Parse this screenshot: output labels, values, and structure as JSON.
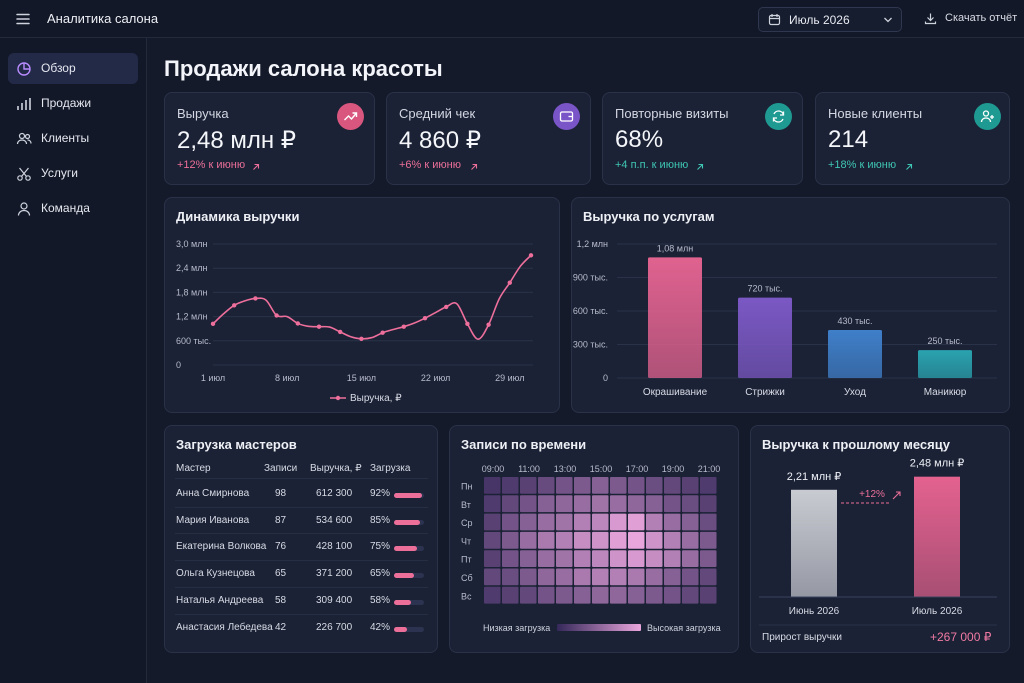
{
  "app": {
    "title": "Аналитика салона"
  },
  "header": {
    "period": "Июль 2026",
    "download_label": "Скачать отчёт"
  },
  "sidebar": {
    "items": [
      {
        "label": "Обзор",
        "icon": "pie-chart-icon",
        "active": true
      },
      {
        "label": "Продажи",
        "icon": "bar-chart-icon"
      },
      {
        "label": "Клиенты",
        "icon": "users-icon"
      },
      {
        "label": "Услуги",
        "icon": "scissors-icon"
      },
      {
        "label": "Команда",
        "icon": "user-icon"
      }
    ]
  },
  "page": {
    "title": "Продажи салона красоты"
  },
  "kpis": [
    {
      "label": "Выручка",
      "value": "2,48 млн ₽",
      "delta": "+12% к июню",
      "delta_color": "#ec6f99",
      "icon": "trend-up-icon",
      "icon_bg": "#d9577f"
    },
    {
      "label": "Средний чек",
      "value": "4 860 ₽",
      "delta": "+6% к июню",
      "delta_color": "#ec6f99",
      "icon": "wallet-icon",
      "icon_bg": "#7a55c8"
    },
    {
      "label": "Повторные визиты",
      "value": "68%",
      "delta": "+4 п.п. к июню",
      "delta_color": "#3fc6b4",
      "icon": "refresh-icon",
      "icon_bg": "#1f9a92"
    },
    {
      "label": "Новые клиенты",
      "value": "214",
      "delta": "+18% к июню",
      "delta_color": "#3fc6b4",
      "icon": "user-plus-icon",
      "icon_bg": "#1f9a92"
    }
  ],
  "revenue_chart": {
    "title": "Динамика выручки",
    "chart_data": {
      "type": "line",
      "y_ticks": [
        "3,0 млн",
        "2,4 млн",
        "1,8 млн",
        "1,2 млн",
        "600 тыс.",
        "0"
      ],
      "x_ticks": [
        "1 июл",
        "8 июл",
        "15 июл",
        "22 июл",
        "29 июл"
      ],
      "ylim": [
        0,
        3000000
      ],
      "x": [
        1,
        2,
        3,
        4,
        5,
        6,
        7,
        8,
        9,
        10,
        11,
        12,
        13,
        14,
        15,
        16,
        17,
        18,
        19,
        20,
        21,
        22,
        23,
        24,
        25,
        26,
        27,
        28,
        29,
        30,
        31
      ],
      "series": [
        {
          "name": "Выручка, ₽",
          "color": "#ee6f9c",
          "values": [
            1020000,
            1270000,
            1480000,
            1590000,
            1650000,
            1610000,
            1230000,
            1200000,
            1030000,
            960000,
            950000,
            940000,
            820000,
            700000,
            650000,
            680000,
            800000,
            880000,
            950000,
            1040000,
            1160000,
            1300000,
            1440000,
            1520000,
            1020000,
            640000,
            1000000,
            1640000,
            2040000,
            2450000,
            2720000
          ]
        }
      ]
    }
  },
  "services_chart": {
    "title": "Выручка по услугам",
    "chart_data": {
      "type": "bar",
      "categories": [
        "Окрашивание",
        "Стрижки",
        "Уход",
        "Маникюр"
      ],
      "values": [
        1080000,
        720000,
        430000,
        250000
      ],
      "value_labels": [
        "1,08 млн",
        "720 тыс.",
        "430 тыс.",
        "250 тыс."
      ],
      "y_ticks": [
        "1,2 млн",
        "900 тыс.",
        "600 тыс.",
        "300 тыс.",
        "0"
      ],
      "ylim": [
        0,
        1200000
      ],
      "colors": [
        "#e0628f",
        "#7b58c4",
        "#3f7fc9",
        "#2aa3b0"
      ]
    }
  },
  "staff": {
    "title": "Загрузка мастеров",
    "headers": [
      "Мастер",
      "Записи",
      "Выручка, ₽",
      "Загрузка"
    ],
    "rows": [
      {
        "name": "Анна Смирнова",
        "bookings": "98",
        "revenue": "612 300",
        "load": "92%",
        "load_value": 92
      },
      {
        "name": "Мария Иванова",
        "bookings": "87",
        "revenue": "534 600",
        "load": "85%",
        "load_value": 85
      },
      {
        "name": "Екатерина Волкова",
        "bookings": "76",
        "revenue": "428 100",
        "load": "75%",
        "load_value": 75
      },
      {
        "name": "Ольга Кузнецова",
        "bookings": "65",
        "revenue": "371 200",
        "load": "65%",
        "load_value": 65
      },
      {
        "name": "Наталья Андреева",
        "bookings": "58",
        "revenue": "309 400",
        "load": "58%",
        "load_value": 58
      },
      {
        "name": "Анастасия Лебедева",
        "bookings": "42",
        "revenue": "226 700",
        "load": "42%",
        "load_value": 42
      }
    ]
  },
  "heatmap": {
    "title": "Записи по времени",
    "chart_data": {
      "type": "heatmap",
      "x_ticks": [
        "09:00",
        "11:00",
        "13:00",
        "15:00",
        "17:00",
        "19:00",
        "21:00"
      ],
      "y_labels": [
        "Пн",
        "Вт",
        "Ср",
        "Чт",
        "Пт",
        "Сб",
        "Вс"
      ],
      "values": [
        [
          0.1,
          0.15,
          0.2,
          0.28,
          0.35,
          0.4,
          0.45,
          0.4,
          0.35,
          0.3,
          0.25,
          0.2,
          0.15
        ],
        [
          0.15,
          0.25,
          0.35,
          0.45,
          0.5,
          0.55,
          0.6,
          0.55,
          0.5,
          0.45,
          0.35,
          0.3,
          0.2
        ],
        [
          0.2,
          0.35,
          0.45,
          0.55,
          0.6,
          0.7,
          0.75,
          0.9,
          0.95,
          0.7,
          0.55,
          0.45,
          0.3
        ],
        [
          0.25,
          0.4,
          0.55,
          0.65,
          0.7,
          0.8,
          0.85,
          0.95,
          1.0,
          0.85,
          0.7,
          0.55,
          0.4
        ],
        [
          0.2,
          0.35,
          0.45,
          0.55,
          0.6,
          0.7,
          0.75,
          0.85,
          0.9,
          0.8,
          0.7,
          0.55,
          0.4
        ],
        [
          0.25,
          0.3,
          0.4,
          0.5,
          0.55,
          0.65,
          0.7,
          0.7,
          0.65,
          0.55,
          0.45,
          0.35,
          0.25
        ],
        [
          0.15,
          0.2,
          0.25,
          0.35,
          0.4,
          0.45,
          0.5,
          0.5,
          0.45,
          0.4,
          0.35,
          0.25,
          0.2
        ]
      ],
      "legend_low": "Низкая загрузка",
      "legend_high": "Высокая загрузка",
      "color_low": "#35285a",
      "color_high": "#e9a6dc"
    }
  },
  "comparison": {
    "title": "Выручка к прошлому месяцу",
    "chart_data": {
      "type": "bar",
      "categories": [
        "Июнь 2026",
        "Июль 2026"
      ],
      "values": [
        2210000,
        2480000
      ],
      "value_labels": [
        "2,21 млн ₽",
        "2,48 млн ₽"
      ],
      "colors": [
        "#c9cbd2",
        "#e4628f"
      ],
      "ylim": [
        0,
        2700000
      ]
    },
    "delta_label": "+12%",
    "footer_label": "Прирост выручки",
    "footer_value": "+267 000 ₽"
  }
}
